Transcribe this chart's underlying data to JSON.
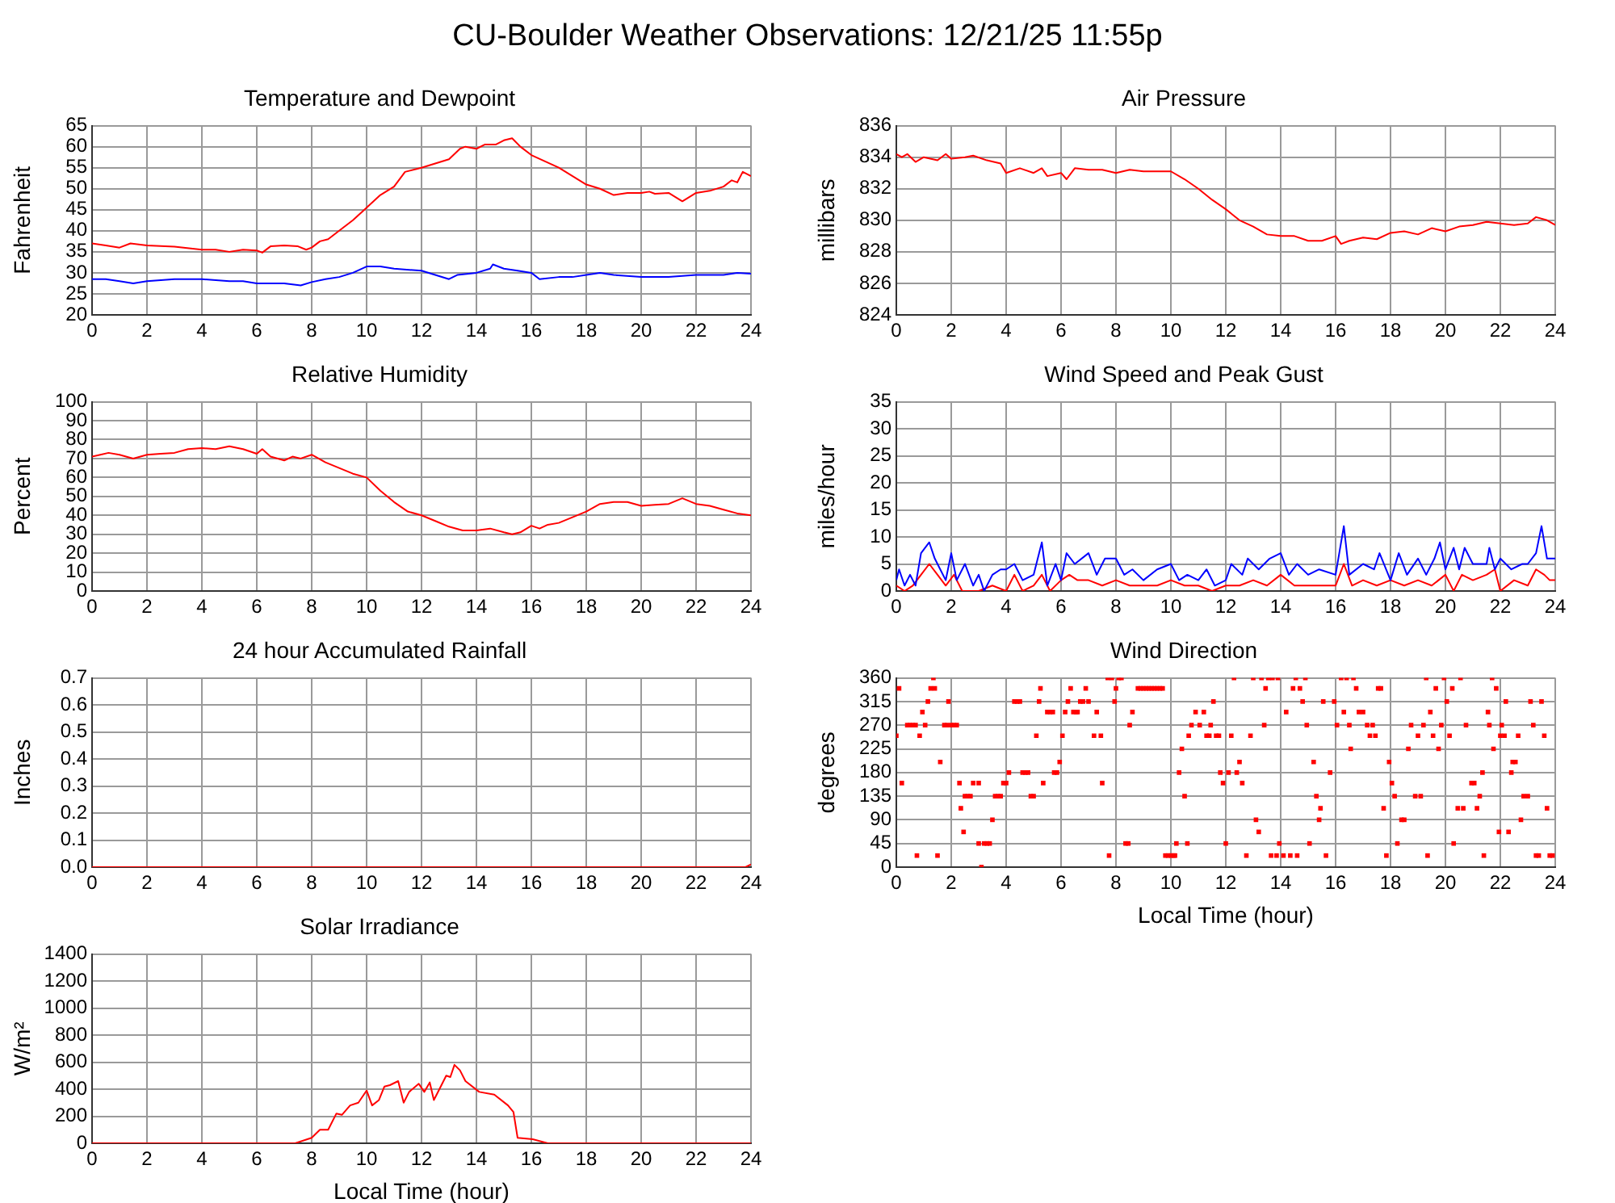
{
  "chart_data": [
    {
      "type": "other",
      "title": "CU-Boulder Weather Observations: 12/21/25 11:55p"
    },
    {
      "type": "line",
      "title": "Temperature and Dewpoint",
      "ylabel": "Fahrenheit",
      "xlim": [
        0,
        24
      ],
      "xticks": [
        0,
        2,
        4,
        6,
        8,
        10,
        12,
        14,
        16,
        18,
        20,
        22,
        24
      ],
      "ylim": [
        20,
        65
      ],
      "yticks": [
        20,
        25,
        30,
        35,
        40,
        45,
        50,
        55,
        60,
        65
      ],
      "grid": true,
      "marker": "none",
      "series": [
        {
          "color": "#ff0000",
          "x": [
            0,
            0.5,
            1,
            1.4,
            2,
            3,
            4,
            4.5,
            5,
            5.5,
            6,
            6.2,
            6.5,
            7,
            7.5,
            7.8,
            8,
            8.3,
            8.6,
            9,
            9.5,
            10,
            10.5,
            11,
            11.4,
            12,
            12.5,
            13,
            13.4,
            13.6,
            14,
            14.3,
            14.7,
            15,
            15.3,
            15.6,
            16,
            16.5,
            17,
            17.5,
            18,
            18.5,
            19,
            19.5,
            20,
            20.3,
            20.5,
            21,
            21.5,
            22,
            22.5,
            23,
            23.3,
            23.5,
            23.7,
            24
          ],
          "values": [
            37,
            36.5,
            36,
            37,
            36.5,
            36.2,
            35.5,
            35.5,
            35,
            35.5,
            35.3,
            34.8,
            36.3,
            36.5,
            36.3,
            35.5,
            36,
            37.5,
            38,
            40,
            42.5,
            45.5,
            48.5,
            50.5,
            54,
            55,
            56,
            57,
            59.5,
            60,
            59.5,
            60.5,
            60.5,
            61.5,
            62,
            60,
            58,
            56.5,
            55,
            53,
            51,
            50,
            48.5,
            49,
            49,
            49.3,
            48.8,
            49,
            47,
            49,
            49.5,
            50.5,
            52,
            51.5,
            54,
            53
          ]
        },
        {
          "color": "#0000ff",
          "x": [
            0,
            0.5,
            1,
            1.5,
            2,
            3,
            4,
            5,
            5.5,
            6,
            7,
            7.6,
            8,
            8.5,
            9,
            9.5,
            10,
            10.5,
            11,
            12,
            12.5,
            13,
            13.3,
            14,
            14.5,
            14.6,
            15,
            15.5,
            16,
            16.3,
            17,
            17.5,
            18,
            18.5,
            19,
            20,
            21,
            22,
            23,
            23.5,
            24
          ],
          "values": [
            28.5,
            28.5,
            28,
            27.5,
            28,
            28.5,
            28.5,
            28,
            28,
            27.5,
            27.5,
            27,
            27.8,
            28.5,
            29,
            30,
            31.5,
            31.5,
            31,
            30.5,
            29.5,
            28.5,
            29.5,
            30,
            31,
            32,
            31,
            30.5,
            30,
            28.5,
            29,
            29,
            29.5,
            30,
            29.5,
            29,
            29,
            29.5,
            29.5,
            30,
            29.8
          ]
        }
      ]
    },
    {
      "type": "line",
      "title": "Air Pressure",
      "ylabel": "millibars",
      "xlim": [
        0,
        24
      ],
      "xticks": [
        0,
        2,
        4,
        6,
        8,
        10,
        12,
        14,
        16,
        18,
        20,
        22,
        24
      ],
      "ylim": [
        824,
        836
      ],
      "yticks": [
        824,
        826,
        828,
        830,
        832,
        834,
        836
      ],
      "grid": true,
      "marker": "none",
      "series": [
        {
          "color": "#ff0000",
          "x": [
            0,
            0.2,
            0.4,
            0.7,
            1,
            1.5,
            1.8,
            2,
            2.5,
            2.8,
            3.3,
            3.8,
            4,
            4.5,
            5,
            5.3,
            5.5,
            6,
            6.2,
            6.5,
            7,
            7.5,
            8,
            8.5,
            9,
            10,
            10.5,
            11,
            11.5,
            12,
            12.5,
            13,
            13.5,
            14,
            14.5,
            15,
            15.5,
            16,
            16.2,
            16.5,
            17,
            17.5,
            18,
            18.5,
            19,
            19.5,
            20,
            20.5,
            21,
            21.5,
            22,
            22.5,
            23,
            23.3,
            23.7,
            24
          ],
          "values": [
            834.2,
            834,
            834.2,
            833.7,
            834,
            833.8,
            834.2,
            833.9,
            834,
            834.1,
            833.8,
            833.6,
            833,
            833.3,
            833,
            833.3,
            832.8,
            833,
            832.6,
            833.3,
            833.2,
            833.2,
            833,
            833.2,
            833.1,
            833.1,
            832.6,
            832,
            831.3,
            830.7,
            830,
            829.6,
            829.1,
            829,
            829,
            828.7,
            828.7,
            829,
            828.5,
            828.7,
            828.9,
            828.8,
            829.2,
            829.3,
            829.1,
            829.5,
            829.3,
            829.6,
            829.7,
            829.9,
            829.8,
            829.7,
            829.8,
            830.2,
            830,
            829.7
          ]
        }
      ]
    },
    {
      "type": "line",
      "title": "Relative Humidity",
      "ylabel": "Percent",
      "xlim": [
        0,
        24
      ],
      "xticks": [
        0,
        2,
        4,
        6,
        8,
        10,
        12,
        14,
        16,
        18,
        20,
        22,
        24
      ],
      "ylim": [
        0,
        100
      ],
      "yticks": [
        0,
        10,
        20,
        30,
        40,
        50,
        60,
        70,
        80,
        90,
        100
      ],
      "grid": true,
      "marker": "none",
      "series": [
        {
          "color": "#ff0000",
          "x": [
            0,
            0.3,
            0.6,
            1,
            1.5,
            2,
            2.5,
            3,
            3.5,
            4,
            4.5,
            5,
            5.5,
            6,
            6.2,
            6.5,
            7,
            7.3,
            7.6,
            8,
            8.5,
            9,
            9.5,
            10,
            10.5,
            11,
            11.5,
            12,
            12.5,
            13,
            13.5,
            14,
            14.5,
            15,
            15.3,
            15.6,
            16,
            16.3,
            16.6,
            17,
            17.5,
            18,
            18.5,
            19,
            19.5,
            20,
            20.5,
            21,
            21.5,
            22,
            22.5,
            23,
            23.5,
            24
          ],
          "values": [
            71,
            72,
            73,
            72,
            70,
            72,
            72.5,
            73,
            75,
            75.5,
            75,
            76.5,
            75,
            72.5,
            75,
            71,
            69,
            71,
            70,
            72,
            68,
            65,
            62,
            60,
            53,
            47,
            42,
            40,
            37,
            34,
            32,
            32,
            33,
            31,
            30,
            31,
            34.5,
            33,
            35,
            36,
            39,
            42,
            46,
            47,
            47,
            45,
            45.5,
            46,
            49,
            46,
            45,
            43,
            41,
            40
          ]
        }
      ]
    },
    {
      "type": "line",
      "title": "Wind Speed and Peak Gust",
      "ylabel": "miles/hour",
      "xlim": [
        0,
        24
      ],
      "xticks": [
        0,
        2,
        4,
        6,
        8,
        10,
        12,
        14,
        16,
        18,
        20,
        22,
        24
      ],
      "ylim": [
        0,
        35
      ],
      "yticks": [
        0,
        5,
        10,
        15,
        20,
        25,
        30,
        35
      ],
      "grid": true,
      "marker": "none",
      "series": [
        {
          "color": "#0000ff",
          "x": [
            0,
            0.1,
            0.3,
            0.5,
            0.7,
            0.9,
            1.2,
            1.4,
            1.6,
            1.8,
            2,
            2.2,
            2.5,
            2.8,
            3,
            3.2,
            3.5,
            3.8,
            4,
            4.3,
            4.6,
            5,
            5.3,
            5.5,
            5.8,
            6,
            6.2,
            6.5,
            7,
            7.3,
            7.6,
            8,
            8.3,
            8.6,
            9,
            9.5,
            10,
            10.3,
            10.6,
            11,
            11.3,
            11.6,
            12,
            12.2,
            12.6,
            12.8,
            13.2,
            13.6,
            14,
            14.3,
            14.6,
            15,
            15.4,
            16,
            16.3,
            16.5,
            17,
            17.4,
            17.6,
            18,
            18.3,
            18.6,
            19,
            19.3,
            19.6,
            19.8,
            20,
            20.3,
            20.5,
            20.7,
            21,
            21.5,
            21.6,
            21.8,
            22,
            22.4,
            22.8,
            23,
            23.3,
            23.5,
            23.7,
            24
          ],
          "values": [
            2,
            4,
            1,
            3,
            1,
            7,
            9,
            6,
            4,
            2,
            7,
            2,
            5,
            1,
            3,
            0,
            3,
            4,
            4,
            5,
            2,
            3,
            9,
            1,
            5,
            2,
            7,
            5,
            7,
            3,
            6,
            6,
            3,
            4,
            2,
            4,
            5,
            2,
            3,
            2,
            4,
            1,
            2,
            5,
            3,
            6,
            4,
            6,
            7,
            3,
            5,
            3,
            4,
            3,
            12,
            3,
            5,
            4,
            7,
            2,
            7,
            3,
            6,
            3,
            6,
            9,
            4,
            8,
            4,
            8,
            5,
            5,
            8,
            4,
            6,
            4,
            5,
            5,
            7,
            12,
            6,
            6
          ]
        },
        {
          "color": "#ff0000",
          "x": [
            0,
            0.3,
            0.6,
            0.9,
            1.2,
            1.5,
            1.8,
            2.1,
            2.4,
            3,
            3.5,
            4,
            4.3,
            4.6,
            5,
            5.3,
            5.6,
            6,
            6.3,
            6.6,
            7,
            7.5,
            8,
            8.5,
            9,
            9.5,
            10,
            10.5,
            11,
            11.5,
            12,
            12.5,
            13,
            13.5,
            14,
            14.5,
            15,
            15.5,
            16,
            16.3,
            16.6,
            17,
            17.5,
            18,
            18.5,
            19,
            19.5,
            20,
            20.3,
            20.6,
            21,
            21.5,
            21.8,
            22,
            22.5,
            23,
            23.3,
            23.6,
            23.8,
            24
          ],
          "values": [
            1,
            0,
            1,
            3,
            5,
            3,
            1,
            3,
            0,
            0,
            1,
            0,
            3,
            0,
            1,
            3,
            0,
            2,
            3,
            2,
            2,
            1,
            2,
            1,
            1,
            1,
            2,
            1,
            1,
            0,
            1,
            1,
            2,
            1,
            3,
            1,
            1,
            1,
            1,
            5,
            1,
            2,
            1,
            2,
            1,
            2,
            1,
            3,
            0,
            3,
            2,
            3,
            4,
            0,
            2,
            1,
            4,
            3,
            2,
            2
          ]
        }
      ]
    },
    {
      "type": "line",
      "title": "24 hour Accumulated Rainfall",
      "ylabel": "Inches",
      "xlim": [
        0,
        24
      ],
      "xticks": [
        0,
        2,
        4,
        6,
        8,
        10,
        12,
        14,
        16,
        18,
        20,
        22,
        24
      ],
      "ylim": [
        0,
        0.7
      ],
      "yticks": [
        {
          "value": 0,
          "label": "0.0"
        },
        0.1,
        0.2,
        0.3,
        0.4,
        0.5,
        0.6,
        0.7
      ],
      "grid": true,
      "marker": "none",
      "series": [
        {
          "color": "#ff0000",
          "x": [
            0,
            23.8,
            24
          ],
          "values": [
            0,
            0,
            0.01
          ]
        }
      ]
    },
    {
      "type": "scatter",
      "title": "Wind Direction",
      "xlabel": "Local Time (hour)",
      "ylabel": "degrees",
      "xlim": [
        0,
        24
      ],
      "xticks": [
        0,
        2,
        4,
        6,
        8,
        10,
        12,
        14,
        16,
        18,
        20,
        22,
        24
      ],
      "ylim": [
        0,
        360
      ],
      "yticks": [
        0,
        45,
        90,
        135,
        180,
        225,
        270,
        315,
        360
      ],
      "grid": true,
      "marker": "square",
      "series": [
        {
          "color": "#ff0000",
          "x": [
            0,
            0.1,
            0.2,
            0.4,
            0.5,
            0.6,
            0.7,
            0.75,
            0.85,
            0.95,
            1.05,
            1.15,
            1.25,
            1.35,
            1.4,
            1.5,
            1.6,
            1.75,
            1.85,
            1.9,
            2.0,
            2.1,
            2.2,
            2.3,
            2.35,
            2.45,
            2.5,
            2.6,
            2.7,
            2.8,
            3.0,
            3.0,
            3.1,
            3.2,
            3.3,
            3.4,
            3.5,
            3.6,
            3.7,
            3.8,
            3.9,
            4.0,
            4.1,
            4.3,
            4.4,
            4.5,
            4.6,
            4.7,
            4.8,
            4.9,
            5.0,
            5.1,
            5.2,
            5.25,
            5.35,
            5.5,
            5.6,
            5.7,
            5.75,
            5.85,
            5.95,
            6.05,
            6.15,
            6.25,
            6.35,
            6.45,
            6.55,
            6.6,
            6.7,
            6.8,
            6.9,
            7.0,
            7.2,
            7.3,
            7.45,
            7.5,
            7.7,
            7.75,
            7.85,
            7.95,
            8.0,
            8.1,
            8.2,
            8.35,
            8.45,
            8.5,
            8.6,
            8.8,
            8.9,
            9.0,
            9.1,
            9.2,
            9.3,
            9.4,
            9.5,
            9.6,
            9.7,
            9.8,
            9.9,
            10.0,
            10.1,
            10.15,
            10.2,
            10.3,
            10.4,
            10.5,
            10.6,
            10.65,
            10.75,
            10.9,
            11.05,
            11.2,
            11.3,
            11.4,
            11.45,
            11.55,
            11.65,
            11.75,
            11.8,
            11.9,
            12.0,
            12.1,
            12.2,
            12.3,
            12.4,
            12.5,
            12.6,
            12.75,
            12.9,
            13.0,
            13.1,
            13.2,
            13.3,
            13.4,
            13.45,
            13.55,
            13.65,
            13.7,
            13.85,
            13.9,
            13.95,
            14.1,
            14.2,
            14.35,
            14.45,
            14.55,
            14.6,
            14.7,
            14.8,
            14.9,
            14.95,
            15.05,
            15.2,
            15.3,
            15.4,
            15.45,
            15.55,
            15.65,
            15.8,
            15.95,
            16.05,
            16.2,
            16.3,
            16.4,
            16.5,
            16.55,
            16.65,
            16.75,
            16.85,
            17.0,
            17.15,
            17.25,
            17.35,
            17.45,
            17.55,
            17.65,
            17.75,
            17.85,
            17.95,
            18.05,
            18.15,
            18.25,
            18.4,
            18.5,
            18.65,
            18.75,
            18.9,
            19.0,
            19.1,
            19.2,
            19.3,
            19.35,
            19.45,
            19.55,
            19.65,
            19.75,
            19.85,
            19.95,
            20.05,
            20.15,
            20.25,
            20.3,
            20.45,
            20.55,
            20.65,
            20.75,
            20.95,
            21.05,
            21.15,
            21.25,
            21.35,
            21.4,
            21.55,
            21.6,
            21.7,
            21.75,
            21.85,
            21.95,
            22.0,
            22.05,
            22.15,
            22.2,
            22.3,
            22.4,
            22.45,
            22.55,
            22.65,
            22.75,
            22.85,
            23.0,
            23.1,
            23.2,
            23.3,
            23.4,
            23.5,
            23.6,
            23.7,
            23.8,
            23.9
          ],
          "values": [
            250,
            340,
            160,
            270,
            270,
            270,
            270,
            22,
            250,
            295,
            270,
            315,
            340,
            360,
            340,
            22,
            200,
            270,
            270,
            315,
            270,
            270,
            270,
            160,
            112,
            67,
            135,
            135,
            135,
            160,
            160,
            45,
            0,
            45,
            45,
            45,
            90,
            135,
            135,
            135,
            160,
            160,
            180,
            315,
            315,
            315,
            180,
            180,
            180,
            135,
            135,
            250,
            315,
            340,
            160,
            295,
            295,
            295,
            180,
            180,
            200,
            250,
            295,
            315,
            340,
            295,
            295,
            295,
            315,
            315,
            340,
            315,
            250,
            295,
            250,
            160,
            360,
            22,
            360,
            315,
            340,
            360,
            360,
            45,
            45,
            270,
            295,
            340,
            340,
            340,
            340,
            340,
            340,
            340,
            340,
            340,
            340,
            22,
            22,
            22,
            22,
            22,
            45,
            180,
            225,
            135,
            45,
            250,
            270,
            295,
            270,
            295,
            250,
            250,
            270,
            315,
            250,
            250,
            180,
            160,
            45,
            180,
            250,
            360,
            180,
            200,
            160,
            22,
            250,
            360,
            90,
            67,
            360,
            270,
            340,
            360,
            22,
            360,
            22,
            360,
            45,
            22,
            295,
            22,
            340,
            360,
            22,
            340,
            315,
            360,
            270,
            45,
            200,
            135,
            90,
            112,
            315,
            22,
            180,
            315,
            270,
            360,
            295,
            360,
            270,
            225,
            360,
            340,
            295,
            295,
            270,
            250,
            270,
            250,
            340,
            340,
            112,
            22,
            200,
            160,
            135,
            45,
            90,
            90,
            225,
            270,
            135,
            250,
            135,
            270,
            360,
            22,
            295,
            250,
            340,
            225,
            270,
            360,
            315,
            250,
            340,
            45,
            112,
            360,
            112,
            270,
            160,
            160,
            112,
            135,
            180,
            22,
            295,
            270,
            360,
            225,
            340,
            67,
            250,
            270,
            250,
            315,
            67,
            180,
            200,
            200,
            250,
            90,
            135,
            135,
            315,
            270,
            22,
            22,
            315,
            250,
            112,
            22,
            22
          ]
        }
      ]
    },
    {
      "type": "line",
      "title": "Solar Irradiance",
      "xlabel": "Local Time (hour)",
      "ylabel": "W/m²",
      "xlim": [
        0,
        24
      ],
      "xticks": [
        0,
        2,
        4,
        6,
        8,
        10,
        12,
        14,
        16,
        18,
        20,
        22,
        24
      ],
      "ylim": [
        0,
        1400
      ],
      "yticks": [
        0,
        200,
        400,
        600,
        800,
        1000,
        1200,
        1400
      ],
      "grid": true,
      "marker": "none",
      "series": [
        {
          "color": "#ff0000",
          "x": [
            0,
            7.4,
            8.0,
            8.3,
            8.6,
            8.9,
            9.1,
            9.4,
            9.7,
            10.0,
            10.2,
            10.45,
            10.65,
            10.85,
            11.15,
            11.35,
            11.55,
            11.9,
            12.1,
            12.3,
            12.45,
            12.7,
            12.9,
            13.05,
            13.2,
            13.4,
            13.6,
            14.1,
            14.65,
            15.15,
            15.35,
            15.5,
            16.05,
            16.6,
            24
          ],
          "values": [
            0,
            0,
            40,
            100,
            100,
            220,
            210,
            280,
            300,
            390,
            280,
            320,
            420,
            430,
            460,
            300,
            380,
            440,
            380,
            450,
            320,
            420,
            500,
            490,
            580,
            540,
            460,
            380,
            360,
            280,
            230,
            40,
            30,
            0,
            0
          ]
        }
      ]
    }
  ]
}
